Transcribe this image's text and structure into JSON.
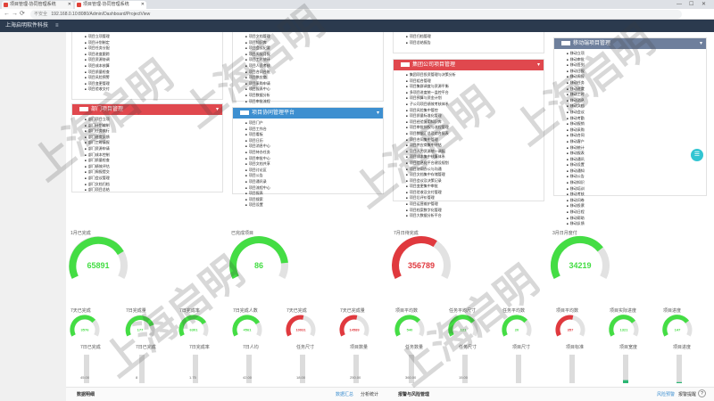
{
  "browser": {
    "tabs": [
      {
        "label": "项目管理-协同管理系统"
      },
      {
        "label": "项目管理-协同管理系统"
      }
    ],
    "address": "192.168.0.10:8080/Admin/Dashboard/ProjectView",
    "secure_label": "不安全",
    "controls": {
      "min": "—",
      "max": "☐",
      "close": "✕",
      "back": "←",
      "forward": "→",
      "reload": "⟳"
    }
  },
  "app": {
    "title": "上海启明软件科技",
    "menu_icon": "≡"
  },
  "panels": {
    "top_left": {
      "items": [
        "项目立项管理",
        "项目计划制定",
        "项目任务分配",
        "项目进度跟踪",
        "项目资源协调",
        "项目成本核算",
        "项目质量检查",
        "项目风险预警",
        "项目变更管理",
        "项目验收交付"
      ]
    },
    "top_mid": {
      "items": [
        "项目文档管理",
        "项目知识库",
        "项目会议纪要",
        "项目周报月报",
        "项目工时统计",
        "项目人员考核",
        "项目合同台账",
        "项目供应商",
        "项目采购申请",
        "项目报表中心",
        "项目数据分析",
        "项目审批流程"
      ]
    },
    "top_right": {
      "items": [
        "项目归档管理",
        "项目总结报告"
      ]
    },
    "company": {
      "title": "集团公司项目管理",
      "items": [
        "集团项目投资管理与决策分析",
        "项目组合管理",
        "项目集群调度与资源平衡",
        "多项目进度统一监控平台",
        "项目预算与资金计划",
        "子公司项目绩效考核体系",
        "项目风险集中管控",
        "项目质量标准化管理",
        "项目经验复用知识库",
        "项目审批授权与流程管理",
        "项目数据汇总及综合报表",
        "项目合同集中管理",
        "项目供应商集中评估",
        "项目人力资源统一调配",
        "项目成本集中核算体系",
        "项目信息化平台建设规划",
        "项目协同办公与沟通",
        "项目文档集中存储管理",
        "项目会议及决策记录",
        "项目变更集中审批",
        "项目验收及交付管理",
        "项目后评价管理",
        "项目运营维护管理",
        "项目档案数字化管理",
        "项目大数据分析平台"
      ]
    },
    "dept": {
      "title": "部门项目管理",
      "items": [
        "部门项目立项",
        "部门计划编制",
        "部门任务执行",
        "部门进度反馈",
        "部门工时填报",
        "部门资源申请",
        "部门成本控制",
        "部门质量检查",
        "部门绩效评估",
        "部门周报提交",
        "部门会议管理",
        "部门文档归档",
        "部门项目总结"
      ]
    },
    "platform": {
      "title": "项目协同管理平台",
      "items": [
        "项目门户",
        "项目工作台",
        "项目看板",
        "项目日历",
        "项目消息中心",
        "项目待办任务",
        "项目审批中心",
        "项目文档共享",
        "项目讨论区",
        "项目公告",
        "项目通讯录",
        "项目流程中心",
        "项目报表",
        "项目搜索",
        "项目设置"
      ]
    },
    "mobile": {
      "title": "移动端项目管理",
      "items": [
        "移动立项",
        "移动审批",
        "移动签到",
        "移动日报",
        "移动周报",
        "移动任务",
        "移动进度",
        "移动工时",
        "移动消息",
        "移动文档",
        "移动会议",
        "移动考勤",
        "移动报销",
        "移动采购",
        "移动合同",
        "移动客户",
        "移动统计",
        "移动报表",
        "移动通讯",
        "移动设置",
        "移动通知",
        "移动公告",
        "移动知识",
        "移动培训",
        "移动考核",
        "移动问卷",
        "移动投票",
        "移动日程",
        "移动帮助",
        "移动反馈"
      ]
    }
  },
  "big_gauges": [
    {
      "label": "1月已完成",
      "value": "65891",
      "percent": 0.76,
      "color": "#44dd44"
    },
    {
      "label": "已完成项目",
      "value": "86",
      "percent": 0.86,
      "color": "#44dd44"
    },
    {
      "label": "7月日待完成",
      "value": "356789",
      "percent": 0.64,
      "color": "#e0393e"
    },
    {
      "label": "3月日月度付",
      "value": "34219",
      "percent": 0.72,
      "color": "#44dd44"
    }
  ],
  "small_gauges": [
    {
      "label": "7天已完成",
      "value": "3576",
      "percent": 0.7,
      "color": "#44dd44"
    },
    {
      "label": "7日完成量",
      "value": "177",
      "percent": 0.8,
      "color": "#44dd44"
    },
    {
      "label": "7日完成率",
      "value": "6301",
      "percent": 0.75,
      "color": "#44dd44"
    },
    {
      "label": "7日完成人数",
      "value": "4561",
      "percent": 0.75,
      "color": "#44dd44"
    },
    {
      "label": "7天已完成",
      "value": "10931",
      "percent": 0.55,
      "color": "#e0393e"
    },
    {
      "label": "7天已完成量",
      "value": "14589",
      "percent": 0.55,
      "color": "#e0393e"
    },
    {
      "label": "项目平均数",
      "value": "540",
      "percent": 0.7,
      "color": "#44dd44"
    },
    {
      "label": "任务平均尺寸",
      "value": "121",
      "percent": 0.72,
      "color": "#44dd44"
    },
    {
      "label": "任务平均数",
      "value": "20",
      "percent": 0.7,
      "color": "#44dd44"
    },
    {
      "label": "项目平均数",
      "value": "357",
      "percent": 0.55,
      "color": "#e0393e"
    },
    {
      "label": "项目实际进度",
      "value": "1321",
      "percent": 0.72,
      "color": "#44dd44"
    },
    {
      "label": "项目进度",
      "value": "147",
      "percent": 0.72,
      "color": "#44dd44"
    }
  ],
  "bar_groups": [
    {
      "label": "7日已完成",
      "val1": "45.00",
      "val2": "12.00",
      "fill": 0.18
    },
    {
      "label": "7日已完成",
      "val1": "8",
      "val2": "2",
      "fill": 0.15
    },
    {
      "label": "7日完成率",
      "val1": "1.75",
      "val2": "0.20",
      "fill": 0.1
    },
    {
      "label": "7日人均",
      "val1": "42.00",
      "val2": "7.00",
      "fill": 0.15
    },
    {
      "label": "任务尺寸",
      "val1": "18.00",
      "val2": "5.00",
      "fill": 0.25
    },
    {
      "label": "项目数量",
      "val1": "250.00",
      "val2": "31.00",
      "fill": 0.15
    },
    {
      "label": "任务数量",
      "val1": "360.00",
      "val2": "250.00",
      "fill": 0.2
    },
    {
      "label": "任务尺寸",
      "val1": "15.00",
      "val2": "3.00",
      "fill": 0.2
    },
    {
      "label": "项目尺寸",
      "val1": "",
      "val2": "4.00",
      "fill": 0.15
    },
    {
      "label": "项目标准",
      "val1": "",
      "val2": "1.00",
      "fill": 0.1
    },
    {
      "label": "项目宽度",
      "val1": "",
      "val2": "",
      "fill": 0.35
    },
    {
      "label": "项目进度",
      "val1": "",
      "val2": "12.00",
      "fill": 0.3
    }
  ],
  "bottom": {
    "left_title": "数据明细",
    "left_tab1": "数据汇总",
    "left_tab2": "分析统计",
    "right_title": "报警与风险管理",
    "right_tab1": "风险预警",
    "right_tab2": "报警提醒",
    "help_icon": "?"
  },
  "fab_icon": "☰",
  "watermarks": [
    "上海启明",
    "上海启明",
    "上海启明",
    "上海启明",
    "上海启明",
    "上海启明"
  ]
}
